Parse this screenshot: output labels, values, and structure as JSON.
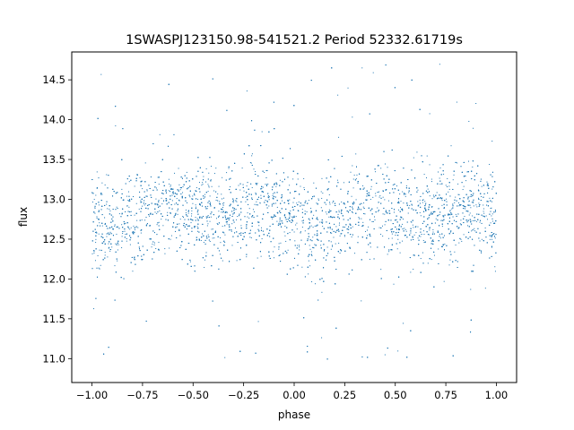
{
  "chart_data": {
    "type": "scatter",
    "title": "1SWASPJ123150.98-541521.2 Period 52332.61719s",
    "xlabel": "phase",
    "ylabel": "flux",
    "xlim": [
      -1.1,
      1.1
    ],
    "ylim": [
      10.7,
      14.85
    ],
    "xticks": [
      -1.0,
      -0.75,
      -0.5,
      -0.25,
      0.0,
      0.25,
      0.5,
      0.75,
      1.0
    ],
    "xtick_labels": [
      "−1.00",
      "−0.75",
      "−0.50",
      "−0.25",
      "0.00",
      "0.25",
      "0.50",
      "0.75",
      "1.00"
    ],
    "yticks": [
      11.0,
      11.5,
      12.0,
      12.5,
      13.0,
      13.5,
      14.0,
      14.5
    ],
    "ytick_labels": [
      "11.0",
      "11.5",
      "12.0",
      "12.5",
      "13.0",
      "13.5",
      "14.0",
      "14.5"
    ],
    "grid": false,
    "series": [
      {
        "color": "#1f77b4",
        "marker": "dot",
        "x_range": [
          -1.0,
          1.0
        ],
        "profile_phase": [
          -1.0,
          -0.9,
          -0.8,
          -0.7,
          -0.6,
          -0.5,
          -0.4,
          -0.3,
          -0.2,
          -0.1,
          0.0,
          0.1,
          0.2,
          0.3,
          0.4,
          0.5,
          0.6,
          0.7,
          0.8,
          0.9,
          1.0
        ],
        "profile_flux": [
          12.72,
          12.67,
          12.74,
          12.87,
          12.91,
          12.84,
          12.76,
          12.8,
          12.93,
          12.89,
          12.74,
          12.66,
          12.72,
          12.86,
          12.91,
          12.85,
          12.76,
          12.79,
          12.92,
          12.89,
          12.74
        ],
        "core_scatter": 0.3,
        "outlier_range": [
          10.95,
          14.75
        ]
      }
    ]
  }
}
